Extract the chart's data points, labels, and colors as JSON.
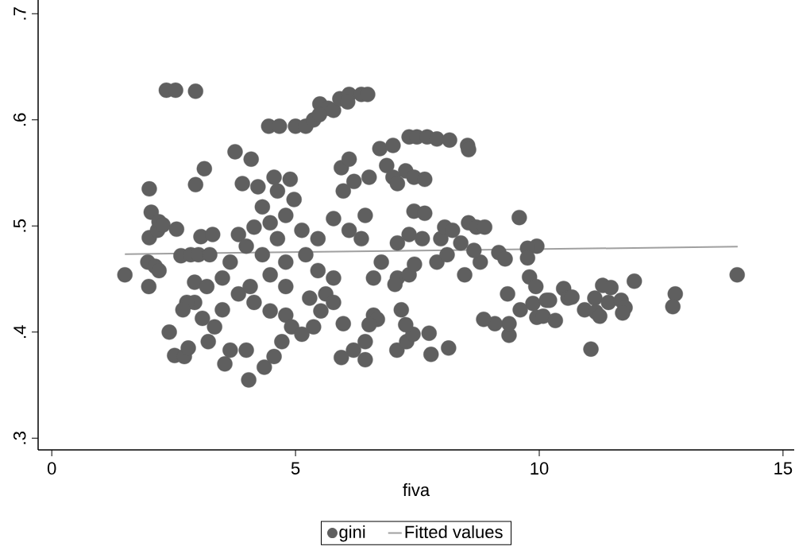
{
  "chart_data": {
    "type": "scatter",
    "xlabel": "fiva",
    "xlim": [
      -0.28,
      15.23
    ],
    "ylim": [
      0.289,
      0.713
    ],
    "xticks": [
      0,
      5,
      10,
      15
    ],
    "yticks": [
      {
        "value": 0.3,
        "label": ".3"
      },
      {
        "value": 0.4,
        "label": ".4"
      },
      {
        "value": 0.5,
        "label": ".5"
      },
      {
        "value": 0.6,
        "label": ".6"
      },
      {
        "value": 0.7,
        "label": ".7"
      }
    ],
    "grid": false,
    "legend": "bottom",
    "series": [
      {
        "name": "gini",
        "marker": "circle",
        "color": "#5f5f5f",
        "x": [
          2.35,
          2.54,
          2.95,
          4.45,
          4.67,
          5.0,
          5.21,
          5.37,
          5.5,
          5.67,
          5.78,
          5.91,
          6.1,
          6.35,
          6.48,
          6.07,
          5.49,
          6.73,
          7.0,
          7.33,
          7.49,
          7.7,
          7.9,
          8.16,
          8.53,
          8.55,
          3.13,
          3.76,
          2.95,
          2.0,
          4.09,
          3.91,
          5.94,
          6.1,
          6.87,
          7.0,
          7.26,
          7.43,
          7.65,
          7.09,
          6.51,
          6.2,
          5.98,
          2.04,
          2.0,
          2.17,
          2.2,
          2.28,
          2.56,
          1.97,
          2.12,
          2.2,
          1.99,
          1.5,
          2.65,
          2.85,
          3.01,
          3.06,
          2.41,
          2.52,
          2.72,
          2.8,
          3.3,
          3.24,
          3.83,
          4.15,
          4.48,
          4.8,
          4.97,
          4.23,
          4.63,
          4.56,
          4.89,
          4.32,
          3.99,
          3.66,
          3.5,
          3.83,
          4.15,
          4.48,
          4.8,
          3.5,
          3.34,
          3.21,
          3.66,
          3.55,
          3.99,
          4.04,
          4.36,
          4.56,
          4.72,
          4.92,
          5.13,
          5.37,
          5.29,
          5.62,
          5.78,
          5.46,
          5.21,
          5.46,
          5.13,
          5.78,
          6.1,
          6.43,
          6.35,
          6.6,
          6.76,
          6.6,
          6.68,
          6.51,
          6.43,
          6.19,
          5.94,
          6.43,
          5.98,
          5.78,
          5.52,
          4.8,
          4.48,
          4.07,
          4.63,
          4.32,
          4.8,
          7.08,
          7.28,
          7.41,
          7.26,
          7.17,
          7.74,
          7.78,
          8.14,
          7.09,
          7.33,
          7.44,
          7.04,
          7.43,
          7.65,
          7.33,
          7.6,
          7.09,
          7.9,
          7.98,
          8.06,
          8.22,
          8.39,
          8.55,
          8.71,
          8.88,
          8.79,
          8.66,
          8.11,
          8.47,
          9.35,
          9.8,
          9.93,
          9.61,
          9.87,
          9.95,
          10.08,
          9.38,
          9.38,
          9.09,
          8.86,
          10.33,
          10.15,
          10.21,
          10.5,
          10.59,
          10.67,
          10.93,
          11.16,
          11.24,
          11.06,
          11.14,
          11.3,
          11.47,
          11.42,
          11.68,
          11.76,
          11.71,
          11.95,
          12.79,
          12.74,
          14.06,
          9.59,
          9.95,
          9.76,
          9.76,
          9.17,
          9.3,
          3.09,
          2.93,
          2.77,
          2.69,
          2.93,
          3.18
        ],
        "values": [
          0.628,
          0.628,
          0.627,
          0.594,
          0.594,
          0.594,
          0.594,
          0.6,
          0.615,
          0.611,
          0.609,
          0.62,
          0.624,
          0.624,
          0.624,
          0.617,
          0.605,
          0.573,
          0.576,
          0.584,
          0.584,
          0.584,
          0.582,
          0.581,
          0.576,
          0.572,
          0.554,
          0.57,
          0.539,
          0.535,
          0.563,
          0.54,
          0.555,
          0.563,
          0.557,
          0.546,
          0.552,
          0.546,
          0.544,
          0.54,
          0.546,
          0.542,
          0.533,
          0.513,
          0.489,
          0.496,
          0.504,
          0.501,
          0.497,
          0.466,
          0.462,
          0.458,
          0.443,
          0.454,
          0.472,
          0.473,
          0.473,
          0.49,
          0.4,
          0.378,
          0.377,
          0.385,
          0.492,
          0.473,
          0.492,
          0.499,
          0.503,
          0.51,
          0.525,
          0.537,
          0.533,
          0.546,
          0.544,
          0.518,
          0.481,
          0.466,
          0.451,
          0.436,
          0.428,
          0.42,
          0.416,
          0.421,
          0.405,
          0.391,
          0.383,
          0.37,
          0.383,
          0.355,
          0.367,
          0.377,
          0.391,
          0.405,
          0.398,
          0.405,
          0.432,
          0.436,
          0.451,
          0.458,
          0.473,
          0.488,
          0.496,
          0.507,
          0.496,
          0.51,
          0.488,
          0.451,
          0.466,
          0.416,
          0.412,
          0.407,
          0.391,
          0.383,
          0.376,
          0.374,
          0.408,
          0.428,
          0.42,
          0.443,
          0.454,
          0.443,
          0.488,
          0.473,
          0.466,
          0.383,
          0.391,
          0.398,
          0.407,
          0.421,
          0.399,
          0.379,
          0.385,
          0.451,
          0.454,
          0.464,
          0.445,
          0.514,
          0.512,
          0.492,
          0.488,
          0.484,
          0.466,
          0.488,
          0.499,
          0.496,
          0.484,
          0.503,
          0.499,
          0.499,
          0.466,
          0.477,
          0.473,
          0.454,
          0.436,
          0.452,
          0.443,
          0.421,
          0.427,
          0.414,
          0.415,
          0.397,
          0.408,
          0.408,
          0.412,
          0.411,
          0.43,
          0.43,
          0.441,
          0.432,
          0.433,
          0.421,
          0.419,
          0.415,
          0.384,
          0.432,
          0.444,
          0.442,
          0.428,
          0.43,
          0.423,
          0.418,
          0.448,
          0.436,
          0.424,
          0.454,
          0.508,
          0.481,
          0.479,
          0.47,
          0.475,
          0.469,
          0.413,
          0.428,
          0.428,
          0.421,
          0.447,
          0.443
        ]
      },
      {
        "name": "Fitted values",
        "type": "line",
        "marker": "none",
        "line_style": "solid",
        "color": "#a0a0a0",
        "x": [
          1.5,
          14.07
        ],
        "values": [
          0.4735,
          0.4805
        ]
      }
    ]
  }
}
